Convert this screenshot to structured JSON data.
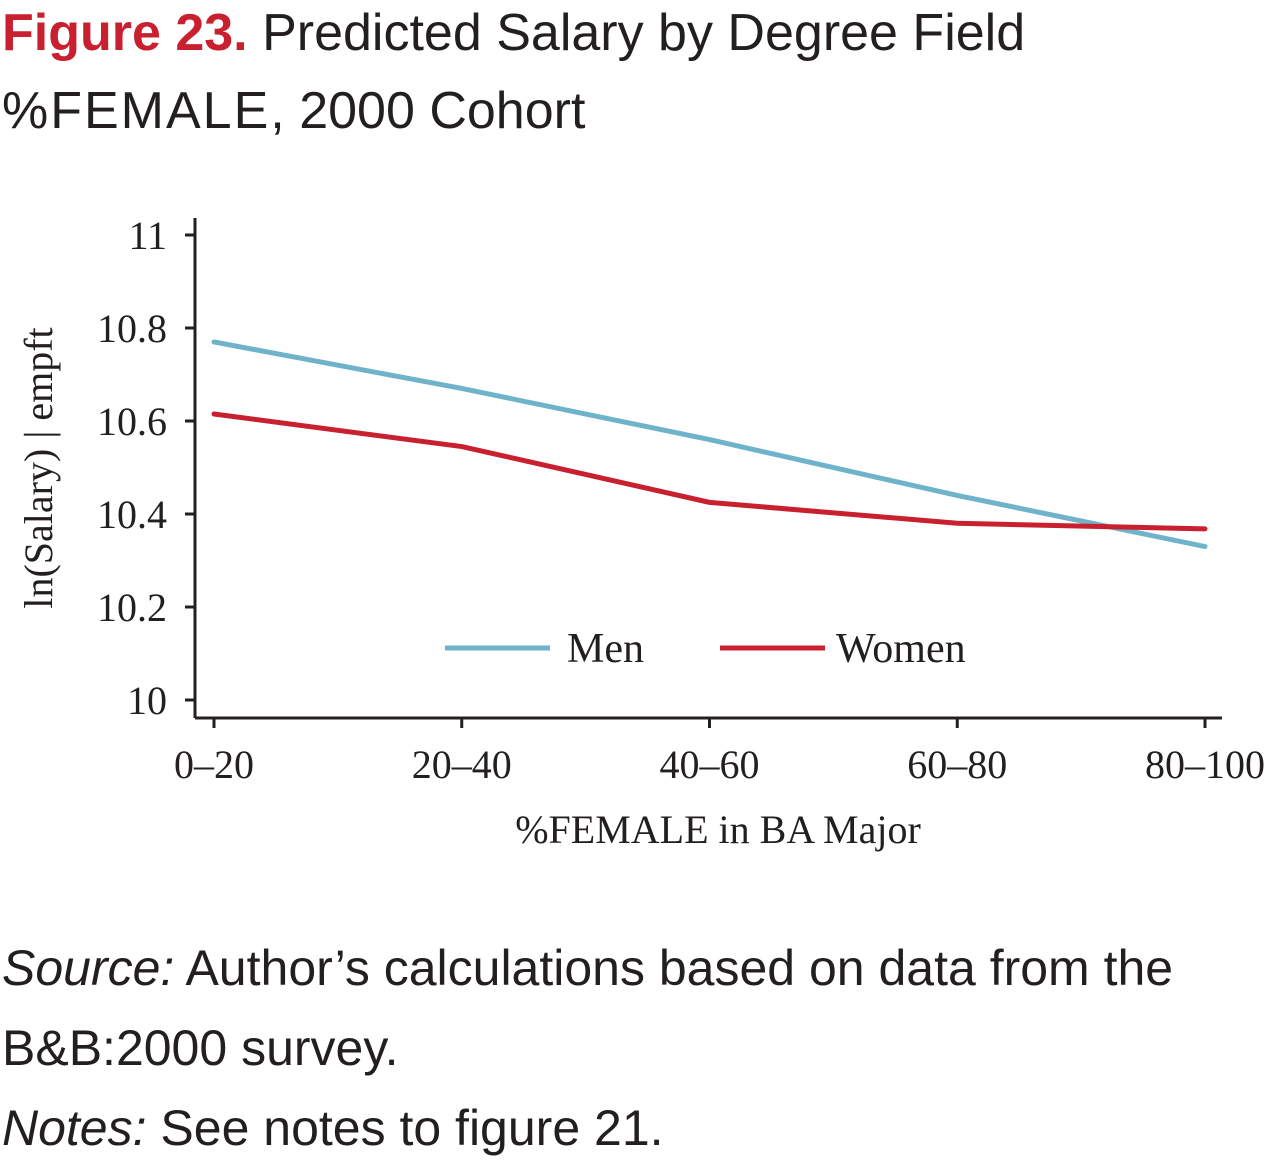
{
  "header": {
    "figure_label": "Figure 23.",
    "title": "Predicted Salary by Degree Field",
    "subtitle_smallcaps": "%FEMALE",
    "subtitle_rest": ", 2000 Cohort"
  },
  "chart_data": {
    "type": "line",
    "categories": [
      "0–20",
      "20–40",
      "40–60",
      "60–80",
      "80–100"
    ],
    "xlabel": "%FEMALE in BA Major",
    "ylabel": "ln(Salary) | empft",
    "ylim": [
      10,
      11
    ],
    "yticks": [
      "10",
      "10.2",
      "10.4",
      "10.6",
      "10.8",
      "11"
    ],
    "grid": false,
    "legend_position": "bottom-center",
    "series": [
      {
        "name": "Men",
        "color": "#6fb3cb",
        "values": [
          10.77,
          10.67,
          10.56,
          10.44,
          10.33
        ]
      },
      {
        "name": "Women",
        "color": "#c8202f",
        "values": [
          10.615,
          10.545,
          10.425,
          10.38,
          10.368
        ]
      }
    ]
  },
  "footer": {
    "source_label": "Source:",
    "source_text": " Author’s calculations based on data from the B&B:2000 survey.",
    "notes_label": "Notes:",
    "notes_text": " See notes to figure 21."
  }
}
